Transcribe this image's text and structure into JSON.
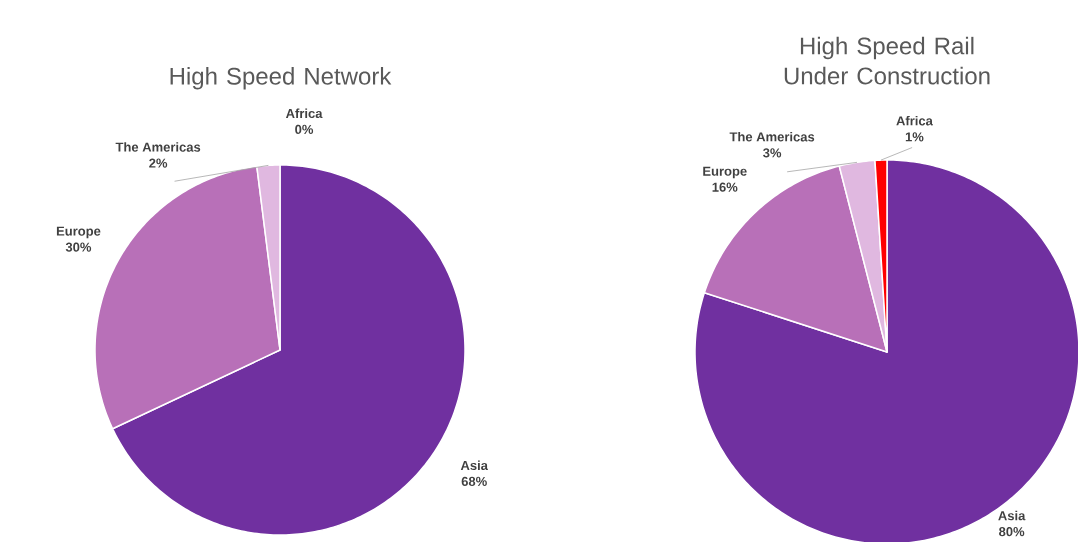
{
  "chart_data": [
    {
      "type": "pie",
      "title": "High Speed Network",
      "categories": [
        "Asia",
        "Europe",
        "The Americas",
        "Africa"
      ],
      "values": [
        68,
        30,
        2,
        0
      ],
      "value_labels": [
        "68%",
        "30%",
        "2%",
        "0%"
      ],
      "colors": [
        "#7030a0",
        "#b870b8",
        "#e0b8e0",
        "#ff0000"
      ]
    },
    {
      "type": "pie",
      "title": "High Speed Rail Under Construction",
      "categories": [
        "Asia",
        "Europe",
        "The Americas",
        "Africa"
      ],
      "values": [
        80,
        16,
        3,
        1
      ],
      "value_labels": [
        "80%",
        "16%",
        "3%",
        "1%"
      ],
      "colors": [
        "#7030a0",
        "#b870b8",
        "#e0b8e0",
        "#ff0000"
      ]
    }
  ]
}
